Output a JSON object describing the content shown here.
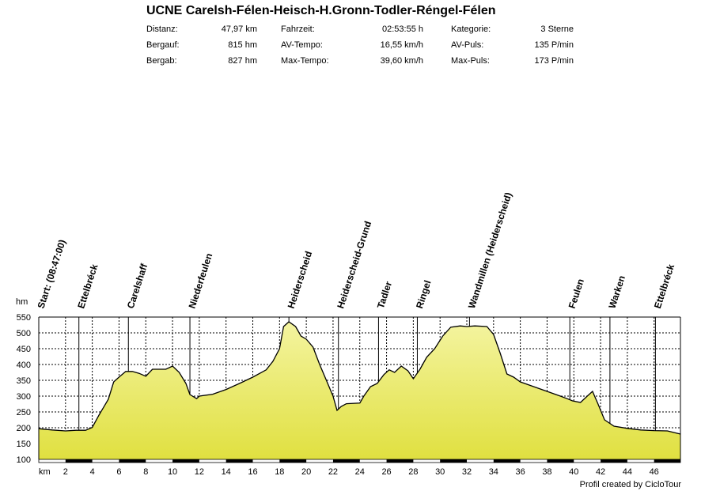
{
  "title": "UCNE Carelsh-Félen-Heisch-H.Gronn-Todler-Réngel-Félen",
  "stats": [
    {
      "label": "Distanz:",
      "value": "47,97 km"
    },
    {
      "label": "Bergauf:",
      "value": "815 hm"
    },
    {
      "label": "Bergab:",
      "value": "827 hm"
    },
    {
      "label": "Fahrzeit:",
      "value": "02:53:55 h"
    },
    {
      "label": "AV-Tempo:",
      "value": "16,55 km/h"
    },
    {
      "label": "Max-Tempo:",
      "value": "39,60 km/h"
    },
    {
      "label": "Kategorie:",
      "value": "3 Sterne"
    },
    {
      "label": "AV-Puls:",
      "value": "135 P/min"
    },
    {
      "label": "Max-Puls:",
      "value": "173 P/min"
    }
  ],
  "footer": "Profil created by CicloTour",
  "colors": {
    "fill_top": "#f0f080",
    "fill_bottom": "#e0e040",
    "line": "#000000"
  },
  "chart_data": {
    "type": "area",
    "xlabel": "km",
    "ylabel": "hm",
    "xlim": [
      0,
      47.97
    ],
    "ylim": [
      100,
      550
    ],
    "x_ticks": [
      2,
      4,
      6,
      8,
      10,
      12,
      14,
      16,
      18,
      20,
      22,
      24,
      26,
      28,
      30,
      32,
      34,
      36,
      38,
      40,
      42,
      44,
      46
    ],
    "y_ticks": [
      100,
      150,
      200,
      250,
      300,
      350,
      400,
      450,
      500,
      550
    ],
    "grid": true,
    "series": [
      {
        "x": [
          0,
          1,
          2,
          2.8,
          3.5,
          4,
          4.5,
          5.2,
          5.6,
          6,
          6.5,
          7,
          7.5,
          8,
          8.5,
          9,
          9.5,
          10,
          10.5,
          11,
          11.3,
          11.8,
          12,
          13,
          14,
          15,
          16,
          17,
          17.5,
          18,
          18.3,
          18.7,
          19.2,
          19.6,
          20,
          20.5,
          21,
          21.5,
          22,
          22.3,
          22.6,
          23,
          24,
          24.3,
          24.8,
          25.3,
          25.8,
          26.2,
          26.6,
          27.1,
          27.6,
          28,
          28.5,
          29,
          29.6,
          30.2,
          30.8,
          31.5,
          32,
          32.6,
          33.5,
          34,
          34.5,
          35,
          35.5,
          36,
          37,
          38,
          39,
          39.5,
          39.9,
          40.5,
          41,
          41.4,
          41.8,
          42.3,
          43,
          44,
          45,
          46,
          47,
          47.97
        ],
        "y": [
          197,
          193,
          190,
          192,
          192,
          201,
          240,
          290,
          345,
          360,
          378,
          378,
          372,
          363,
          385,
          385,
          385,
          395,
          375,
          340,
          305,
          292,
          300,
          306,
          321,
          340,
          360,
          383,
          410,
          450,
          520,
          535,
          520,
          490,
          480,
          455,
          400,
          350,
          300,
          255,
          267,
          276,
          278,
          300,
          330,
          340,
          368,
          383,
          375,
          395,
          380,
          355,
          385,
          423,
          450,
          490,
          518,
          522,
          520,
          522,
          520,
          495,
          435,
          370,
          360,
          345,
          330,
          315,
          300,
          292,
          285,
          280,
          300,
          315,
          276,
          225,
          205,
          198,
          193,
          191,
          190,
          180
        ]
      }
    ],
    "waypoints": [
      {
        "label": "Start: (08:47:00)",
        "km": 0
      },
      {
        "label": "Ettelbréck",
        "km": 3.0
      },
      {
        "label": "Carelshaff",
        "km": 6.7
      },
      {
        "label": "Niederfeulen",
        "km": 11.3
      },
      {
        "label": "Heiderscheid",
        "km": 18.7
      },
      {
        "label": "Heiderscheid-Grund",
        "km": 22.4
      },
      {
        "label": "Tadler",
        "km": 25.4
      },
      {
        "label": "Ringel",
        "km": 28.3
      },
      {
        "label": "Wandmillen (Heiderscheid)",
        "km": 32.2
      },
      {
        "label": "Feulen",
        "km": 39.7
      },
      {
        "label": "Warken",
        "km": 42.7
      },
      {
        "label": "Ettelbréck",
        "km": 46.1
      }
    ]
  }
}
